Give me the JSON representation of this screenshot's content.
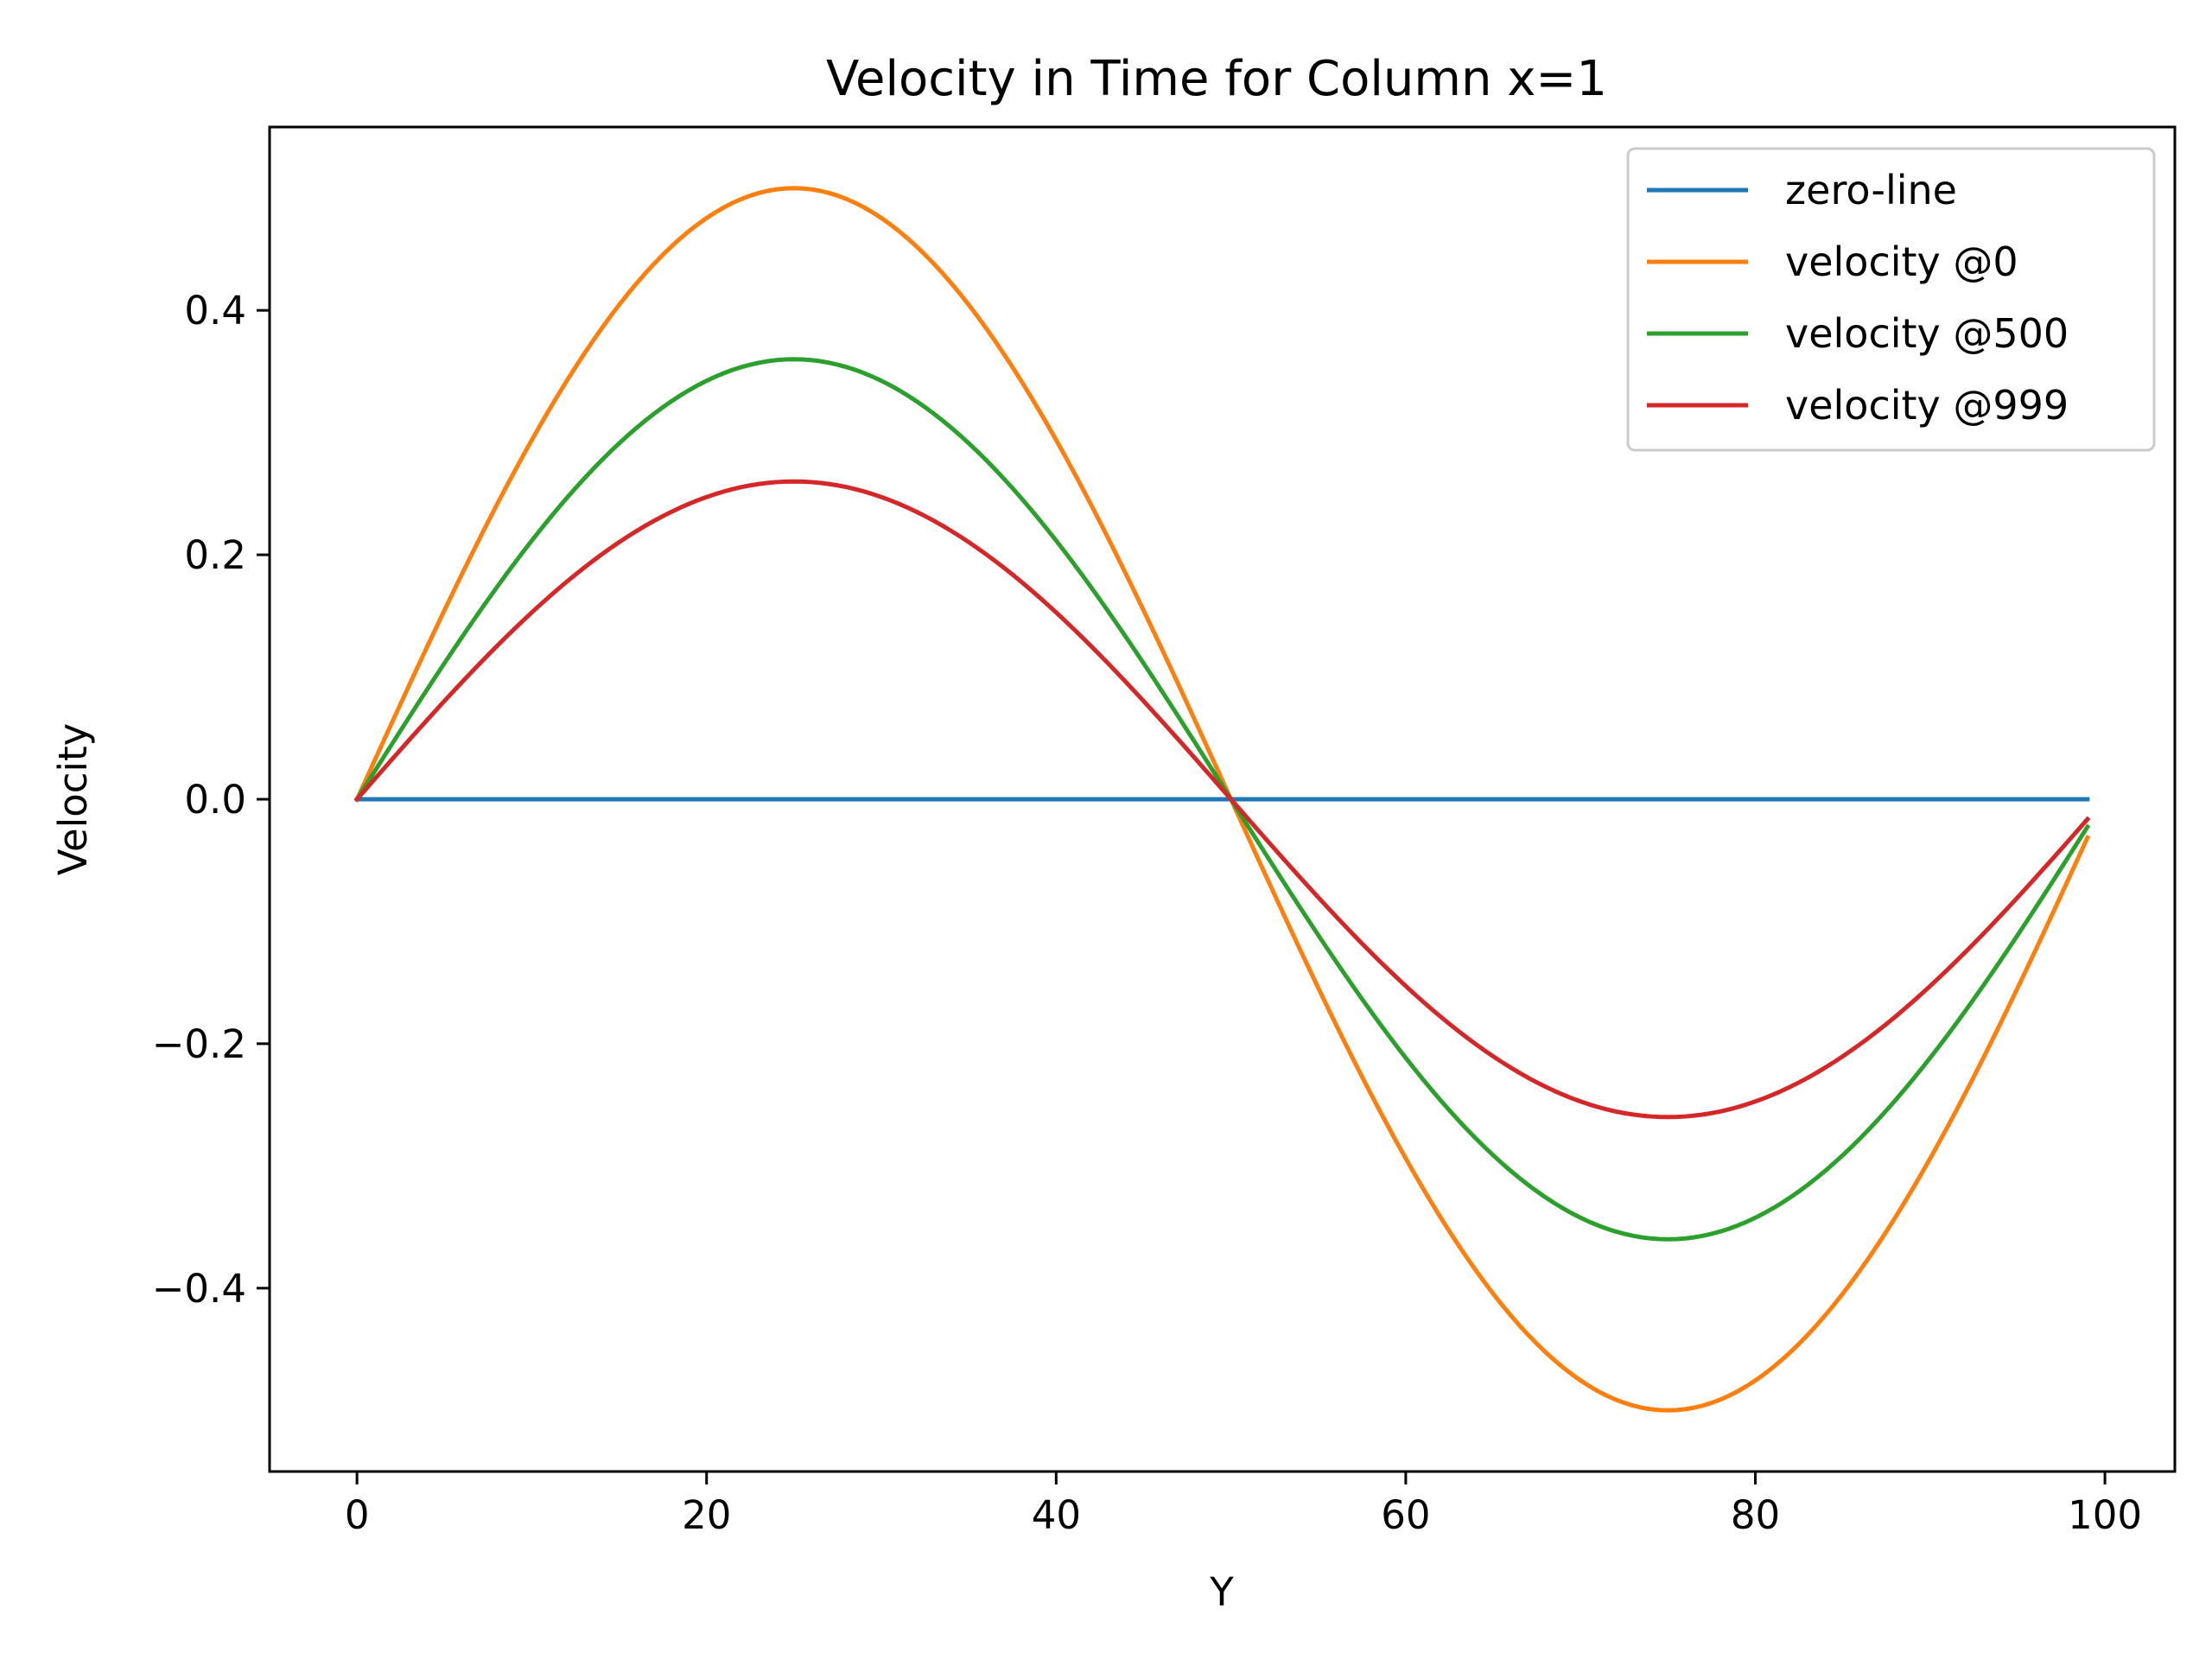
{
  "chart_data": {
    "type": "line",
    "title": "Velocity in Time for Column x=1",
    "xlabel": "Y",
    "ylabel": "Velocity",
    "xlim": [
      -5,
      104
    ],
    "ylim": [
      -0.55,
      0.55
    ],
    "xticks": [
      0,
      20,
      40,
      60,
      80,
      100
    ],
    "yticks": [
      0.4,
      0.2,
      0.0,
      -0.2,
      -0.4
    ],
    "ytick_labels": [
      "0.4",
      "0.2",
      "0.0",
      "−0.2",
      "−0.4"
    ],
    "grid": false,
    "legend_position": "top-right",
    "x_range": [
      0,
      99
    ],
    "series": [
      {
        "name": "zero-line",
        "color": "#1f77b4",
        "function": "constant",
        "amplitude": 0.0,
        "points": [
          [
            0,
            0.0
          ],
          [
            99,
            0.0
          ]
        ]
      },
      {
        "name": "velocity @0",
        "color": "#ff7f0e",
        "function": "sine",
        "amplitude": 0.5,
        "period": 100,
        "points": [
          [
            0,
            0.0
          ],
          [
            25,
            0.5
          ],
          [
            50,
            0.0
          ],
          [
            75,
            -0.5
          ],
          [
            99,
            -0.03
          ]
        ]
      },
      {
        "name": "velocity @500",
        "color": "#2ca02c",
        "function": "sine",
        "amplitude": 0.36,
        "period": 100,
        "points": [
          [
            0,
            0.0
          ],
          [
            25,
            0.36
          ],
          [
            50,
            0.0
          ],
          [
            75,
            -0.36
          ],
          [
            99,
            -0.02
          ]
        ]
      },
      {
        "name": "velocity @999",
        "color": "#d62728",
        "function": "sine",
        "amplitude": 0.26,
        "period": 100,
        "points": [
          [
            0,
            0.0
          ],
          [
            25,
            0.26
          ],
          [
            50,
            0.0
          ],
          [
            75,
            -0.26
          ],
          [
            99,
            -0.016
          ]
        ]
      }
    ]
  }
}
